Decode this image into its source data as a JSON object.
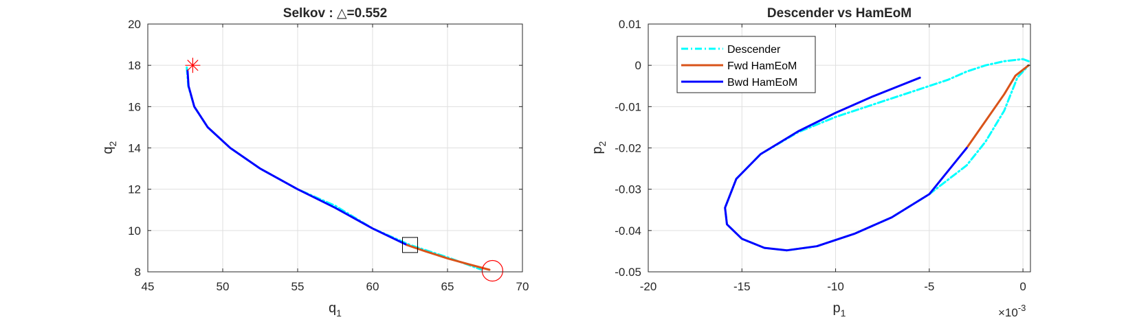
{
  "colors": {
    "descender": "#00FFFF",
    "fwd": "#D95319",
    "bwd": "#0000FF",
    "marker": "#FF0000",
    "grid": "#DFDFDF",
    "axis": "#262626"
  },
  "chart_data": [
    {
      "type": "line",
      "title": "Selkov : △=0.552",
      "xlabel": "q",
      "xlabel_sub": "1",
      "ylabel": "q",
      "ylabel_sub": "2",
      "xlim": [
        45,
        70
      ],
      "ylim": [
        8,
        20
      ],
      "xticks": [
        45,
        50,
        55,
        60,
        65,
        70
      ],
      "yticks": [
        8,
        10,
        12,
        14,
        16,
        18,
        20
      ],
      "grid": true,
      "series": [
        {
          "role": "descender",
          "style": "dashdot",
          "x": [
            47.6,
            47.7,
            48.1,
            49.0,
            50.5,
            52.5,
            55.0,
            57.5,
            60.0,
            62.5,
            65.0,
            67.3
          ],
          "y": [
            17.9,
            17.0,
            16.0,
            15.0,
            14.0,
            13.0,
            12.0,
            11.2,
            10.1,
            9.3,
            8.7,
            8.1
          ]
        },
        {
          "role": "bwd",
          "style": "solid",
          "x": [
            47.65,
            47.72,
            48.1,
            49.0,
            50.5,
            52.5,
            55.0,
            57.5,
            60.0,
            62.3
          ],
          "y": [
            17.75,
            17.0,
            16.0,
            15.0,
            14.0,
            13.0,
            12.0,
            11.1,
            10.1,
            9.3
          ]
        },
        {
          "role": "fwd",
          "style": "solid",
          "x": [
            62.3,
            63.5,
            65.0,
            66.5,
            67.8
          ],
          "y": [
            9.3,
            9.0,
            8.65,
            8.35,
            8.1
          ]
        }
      ],
      "markers": [
        {
          "type": "asterisk",
          "x": 48.0,
          "y": 18.0
        },
        {
          "type": "circle",
          "x": 68.0,
          "y": 8.05
        },
        {
          "type": "square",
          "x": 62.5,
          "y": 9.3
        }
      ]
    },
    {
      "type": "line",
      "title": "Descender vs HamEoM",
      "xlabel": "p",
      "xlabel_sub": "1",
      "ylabel": "p",
      "ylabel_sub": "2",
      "xlim": [
        -20,
        0.4
      ],
      "ylim": [
        -0.05,
        0.01
      ],
      "xticks": [
        -20,
        -15,
        -10,
        -5,
        0
      ],
      "yticks": [
        -0.05,
        -0.04,
        -0.03,
        -0.02,
        -0.01,
        0,
        0.01
      ],
      "ytick_labels": [
        "-0.05",
        "-0.04",
        "-0.03",
        "-0.02",
        "-0.01",
        "0",
        "0.01"
      ],
      "x_exponent_base": "×10",
      "x_exponent_power": "-3",
      "grid": true,
      "legend": {
        "placement": "top-left",
        "entries": [
          "Descender",
          "Fwd HamEoM",
          "Bwd HamEoM"
        ]
      },
      "series": [
        {
          "role": "descender",
          "name": "Descender",
          "style": "dashdot",
          "x": [
            0.3,
            0.0,
            -1.0,
            -2.0,
            -3.0,
            -4.0,
            -6.0,
            -8.0,
            -10.0,
            -12.0,
            -14.0,
            -15.3,
            -15.9,
            -15.8,
            -15.0,
            -13.8,
            -12.6,
            -11.0,
            -9.0,
            -7.0,
            -5.0,
            -3.0,
            -2.0,
            -1.0,
            -0.3,
            0.3
          ],
          "y": [
            0.001,
            0.0015,
            0.001,
            0.0,
            -0.0015,
            -0.0035,
            -0.0065,
            -0.0095,
            -0.0125,
            -0.0162,
            -0.0215,
            -0.0275,
            -0.0345,
            -0.0385,
            -0.042,
            -0.0442,
            -0.0448,
            -0.0438,
            -0.0408,
            -0.0368,
            -0.0312,
            -0.0242,
            -0.0185,
            -0.011,
            -0.003,
            0.0
          ]
        },
        {
          "role": "fwd",
          "name": "Fwd HamEoM",
          "style": "solid",
          "x": [
            -3.0,
            -2.0,
            -1.0,
            -0.4,
            0.3
          ],
          "y": [
            -0.02,
            -0.0135,
            -0.007,
            -0.0025,
            0.0
          ]
        },
        {
          "role": "bwd",
          "name": "Bwd HamEoM",
          "style": "solid",
          "x": [
            -5.5,
            -8.0,
            -10.0,
            -12.0,
            -14.0,
            -15.3,
            -15.9,
            -15.8,
            -15.0,
            -13.8,
            -12.6,
            -11.0,
            -9.0,
            -7.0,
            -5.0,
            -3.0
          ],
          "y": [
            -0.003,
            -0.0075,
            -0.0115,
            -0.016,
            -0.0215,
            -0.0275,
            -0.0345,
            -0.0385,
            -0.042,
            -0.0442,
            -0.0448,
            -0.0438,
            -0.0408,
            -0.0368,
            -0.0312,
            -0.02
          ]
        }
      ]
    }
  ]
}
